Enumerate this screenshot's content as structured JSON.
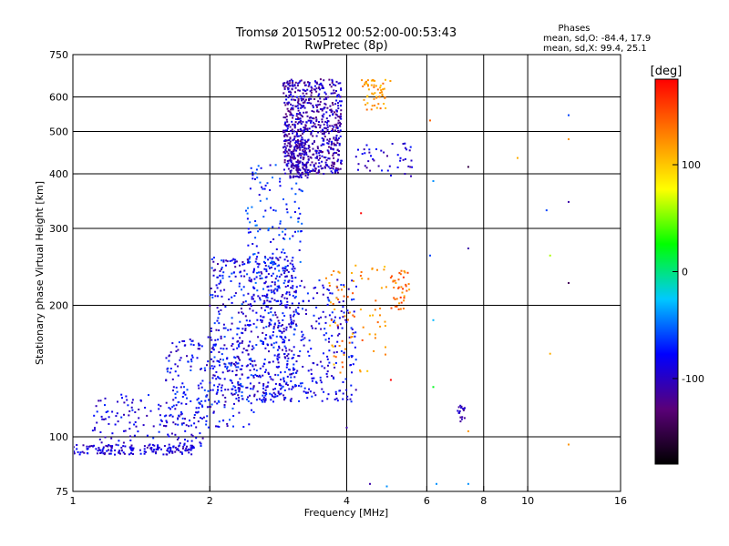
{
  "chart_data": {
    "type": "scatter",
    "title": "Tromsø 20150512 00:52:00-00:53:43",
    "subtitle": "RwPretec (8p)",
    "xlabel": "Frequency [MHz]",
    "ylabel": "Stationary phase Virtual Height [km]",
    "x_scale": "log",
    "y_scale": "log",
    "xlim": [
      1,
      16
    ],
    "ylim": [
      75,
      750
    ],
    "x_ticks": [
      1,
      2,
      4,
      6,
      8,
      10,
      16
    ],
    "x_tick_labels": [
      "1",
      "2",
      "4",
      "6",
      "8",
      "10",
      "16"
    ],
    "y_ticks": [
      75,
      100,
      200,
      300,
      400,
      500,
      600,
      750
    ],
    "y_tick_labels": [
      "75",
      "100",
      "200",
      "300",
      "400",
      "500",
      "600",
      "750"
    ],
    "grid": true,
    "colorbar": {
      "label": "[deg]",
      "range": [
        -180,
        180
      ],
      "ticks": [
        100,
        0,
        -100
      ],
      "tick_labels": [
        "100",
        "0",
        "-100"
      ],
      "colors": [
        "#000000",
        "#5a0078",
        "#0000ff",
        "#00c8ff",
        "#00ff00",
        "#ffff00",
        "#ff8000",
        "#ff0000"
      ]
    },
    "stats": {
      "header": "Phases",
      "line_o": "mean, sd,O: -84.4, 17.9",
      "line_x": "mean, sd,X:  99.4, 25.1"
    },
    "point_clusters": [
      {
        "f": [
          1.0,
          1.85
        ],
        "h": [
          91,
          96
        ],
        "n": 160,
        "phase": [
          -115,
          -70
        ]
      },
      {
        "f": [
          1.1,
          2.0
        ],
        "h": [
          95,
          125
        ],
        "n": 150,
        "phase": [
          -110,
          -65
        ]
      },
      {
        "f": [
          1.6,
          2.5
        ],
        "h": [
          105,
          170
        ],
        "n": 220,
        "phase": [
          -110,
          -55
        ]
      },
      {
        "f": [
          2.0,
          3.1
        ],
        "h": [
          120,
          260
        ],
        "n": 520,
        "phase": [
          -115,
          -55
        ]
      },
      {
        "f": [
          2.4,
          3.2
        ],
        "h": [
          200,
          420
        ],
        "n": 160,
        "phase": [
          -100,
          -45
        ]
      },
      {
        "f": [
          2.6,
          4.2
        ],
        "h": [
          120,
          230
        ],
        "n": 320,
        "phase": [
          -110,
          -60
        ]
      },
      {
        "f": [
          2.9,
          3.9
        ],
        "h": [
          400,
          660
        ],
        "n": 700,
        "phase": [
          -130,
          -80
        ]
      },
      {
        "f": [
          3.0,
          3.3
        ],
        "h": [
          390,
          480
        ],
        "n": 120,
        "phase": [
          -125,
          -85
        ]
      },
      {
        "f": [
          3.6,
          4.9
        ],
        "h": [
          140,
          250
        ],
        "n": 80,
        "phase": [
          100,
          150
        ]
      },
      {
        "f": [
          4.3,
          5.0
        ],
        "h": [
          560,
          660
        ],
        "n": 55,
        "phase": [
          95,
          140
        ]
      },
      {
        "f": [
          5.0,
          5.5
        ],
        "h": [
          195,
          240
        ],
        "n": 40,
        "phase": [
          110,
          160
        ]
      },
      {
        "f": [
          4.1,
          5.6
        ],
        "h": [
          395,
          470
        ],
        "n": 45,
        "phase": [
          -120,
          -70
        ]
      },
      {
        "f": [
          7.0,
          7.3
        ],
        "h": [
          108,
          118
        ],
        "n": 18,
        "phase": [
          -125,
          -90
        ]
      }
    ],
    "sparse_points": [
      {
        "f": 6.1,
        "h": 530,
        "phase": 140
      },
      {
        "f": 6.2,
        "h": 385,
        "phase": -40
      },
      {
        "f": 6.1,
        "h": 260,
        "phase": -60
      },
      {
        "f": 6.2,
        "h": 185,
        "phase": -30
      },
      {
        "f": 6.2,
        "h": 130,
        "phase": 20
      },
      {
        "f": 6.3,
        "h": 78,
        "phase": -40
      },
      {
        "f": 7.4,
        "h": 415,
        "phase": -150
      },
      {
        "f": 7.4,
        "h": 270,
        "phase": -110
      },
      {
        "f": 7.4,
        "h": 103,
        "phase": 120
      },
      {
        "f": 7.4,
        "h": 78,
        "phase": -40
      },
      {
        "f": 9.5,
        "h": 435,
        "phase": 110
      },
      {
        "f": 11.0,
        "h": 330,
        "phase": -60
      },
      {
        "f": 11.2,
        "h": 260,
        "phase": 60
      },
      {
        "f": 11.2,
        "h": 155,
        "phase": 110
      },
      {
        "f": 12.3,
        "h": 545,
        "phase": -60
      },
      {
        "f": 12.3,
        "h": 480,
        "phase": 120
      },
      {
        "f": 12.3,
        "h": 345,
        "phase": -110
      },
      {
        "f": 12.3,
        "h": 225,
        "phase": -140
      },
      {
        "f": 12.3,
        "h": 96,
        "phase": 120
      },
      {
        "f": 4.0,
        "h": 105,
        "phase": -110
      },
      {
        "f": 4.3,
        "h": 325,
        "phase": 180
      },
      {
        "f": 4.5,
        "h": 78,
        "phase": -110
      },
      {
        "f": 5.0,
        "h": 135,
        "phase": 180
      },
      {
        "f": 4.9,
        "h": 77,
        "phase": -40
      }
    ]
  }
}
